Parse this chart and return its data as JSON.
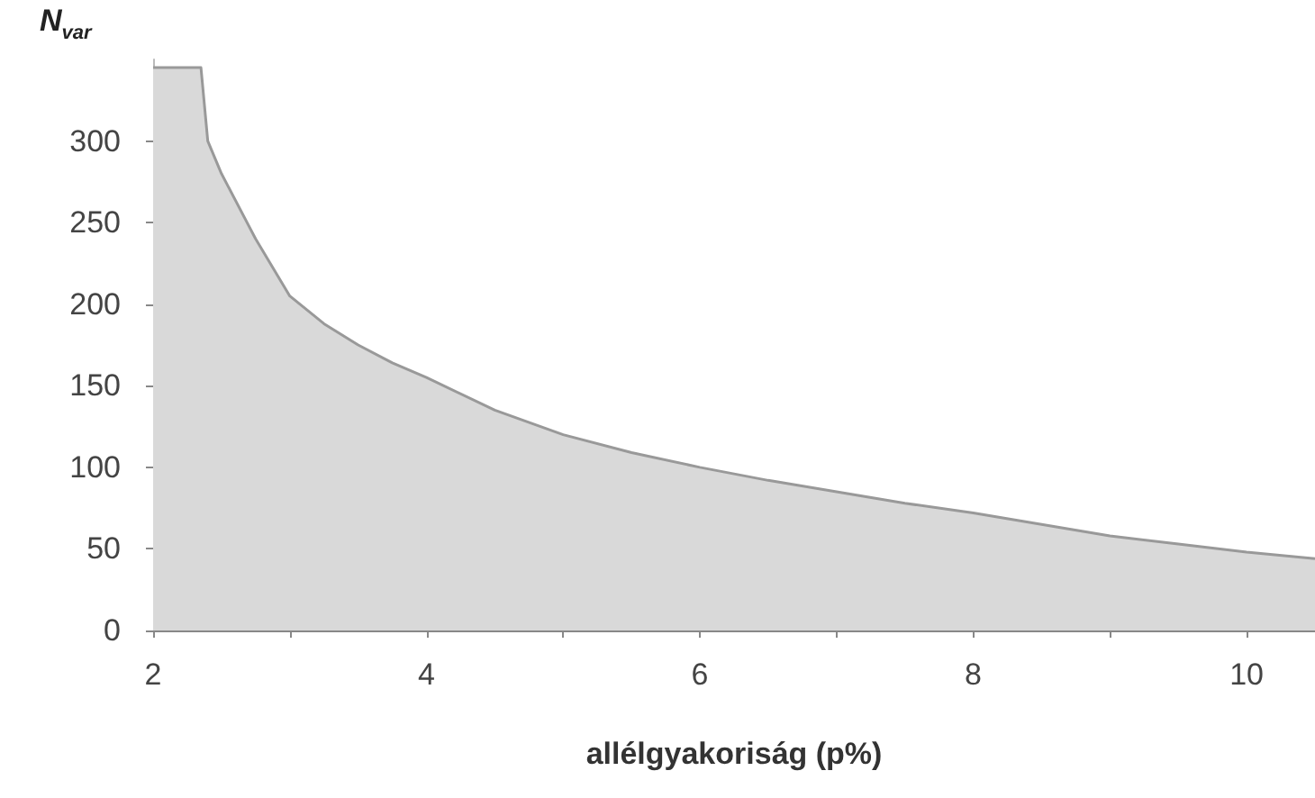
{
  "chart_data": {
    "type": "area",
    "xlabel": "allélgyakoriság (p%)",
    "ylabel": "N$_{var}$",
    "series": [
      {
        "color": "#d9d9d9",
        "x": [
          2,
          2.35,
          2.4,
          2.5,
          2.75,
          3,
          3.25,
          3.5,
          3.75,
          4,
          4.5,
          5,
          5.5,
          6,
          6.5,
          7,
          7.5,
          8,
          8.5,
          9,
          9.5,
          10,
          10.5
        ],
        "values": [
          345,
          345,
          300,
          280,
          240,
          205,
          188,
          175,
          164,
          155,
          135,
          120,
          109,
          100,
          92,
          85,
          78,
          72,
          65,
          58,
          53,
          48,
          44
        ]
      }
    ],
    "xlim": [
      2,
      10.5
    ],
    "xticks": [
      2,
      {
        "value": 3,
        "label": null
      },
      4,
      {
        "value": 5,
        "label": null
      },
      6,
      {
        "value": 7,
        "label": null
      },
      8,
      {
        "value": 9,
        "label": null
      },
      10
    ],
    "ylim": [
      0,
      350
    ],
    "yticks": [
      0,
      50,
      100,
      150,
      200,
      250,
      300
    ],
    "grid": false,
    "marker": "none",
    "line_style": "solid"
  }
}
